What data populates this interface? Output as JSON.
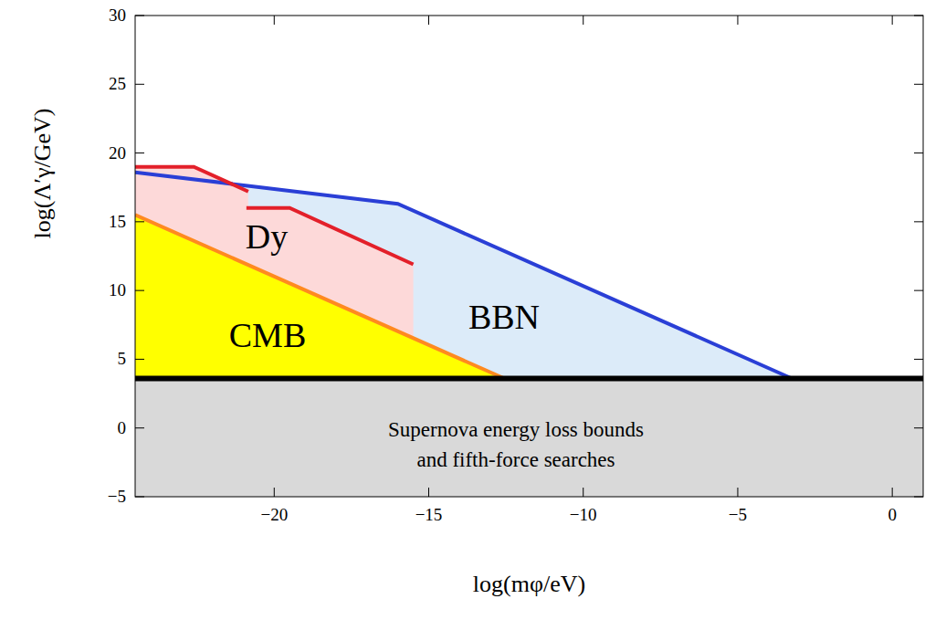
{
  "chart_data": {
    "type": "area",
    "xlabel": "log(mφ/eV)",
    "ylabel": "log(Λ′γ/GeV)",
    "xlim": [
      -24.5,
      1
    ],
    "ylim": [
      -5,
      30
    ],
    "xticks": [
      -20,
      -15,
      -10,
      -5,
      0
    ],
    "yticks": [
      -5,
      0,
      5,
      10,
      15,
      20,
      25,
      30
    ],
    "grid": false,
    "annotations": [
      "Supernova energy loss bounds",
      "and fifth-force searches"
    ],
    "series": [
      {
        "name": "BBN",
        "type": "area",
        "color": "#dcebf9",
        "x": [
          -24.5,
          -20.8,
          -16,
          -3.25,
          -24.5
        ],
        "values": [
          18.6,
          17.6,
          16.3,
          3.6,
          3.6
        ]
      },
      {
        "name": "Dy",
        "type": "area",
        "color": "#fdd9d9",
        "x": [
          -24.5,
          -22.6,
          -20.84,
          -20.84,
          -19.5,
          -15.5,
          -15.5,
          -24.5
        ],
        "values": [
          19,
          19,
          17.2,
          16,
          16,
          11.9,
          6.5,
          15.5
        ]
      },
      {
        "name": "CMB",
        "type": "area",
        "color": "#ffff00",
        "x": [
          -24.5,
          -12.55,
          -24.5
        ],
        "values": [
          15.5,
          3.6,
          3.6
        ]
      },
      {
        "type": "area",
        "color": "#d9d9d9",
        "x": [
          -24.5,
          1,
          1,
          -24.5
        ],
        "values": [
          3.6,
          3.6,
          -5,
          -5
        ]
      },
      {
        "type": "line",
        "color": "#2a3fd6",
        "x": [
          -24.5,
          -20.8,
          -16,
          -3.25
        ],
        "values": [
          18.6,
          17.6,
          16.3,
          3.6
        ]
      },
      {
        "type": "line",
        "color": "#e3202a",
        "x": [
          -24.5,
          -22.6,
          -20.84
        ],
        "values": [
          19,
          19,
          17.2
        ]
      },
      {
        "type": "line",
        "color": "#e3202a",
        "x": [
          -20.9,
          -19.5,
          -15.5
        ],
        "values": [
          16,
          16,
          11.9
        ]
      },
      {
        "type": "line",
        "color": "#ff8a1f",
        "x": [
          -24.5,
          -12.55
        ],
        "values": [
          15.5,
          3.6
        ]
      },
      {
        "type": "line",
        "color": "#000000",
        "x": [
          -24.5,
          1
        ],
        "values": [
          3.6,
          3.6
        ]
      }
    ]
  }
}
